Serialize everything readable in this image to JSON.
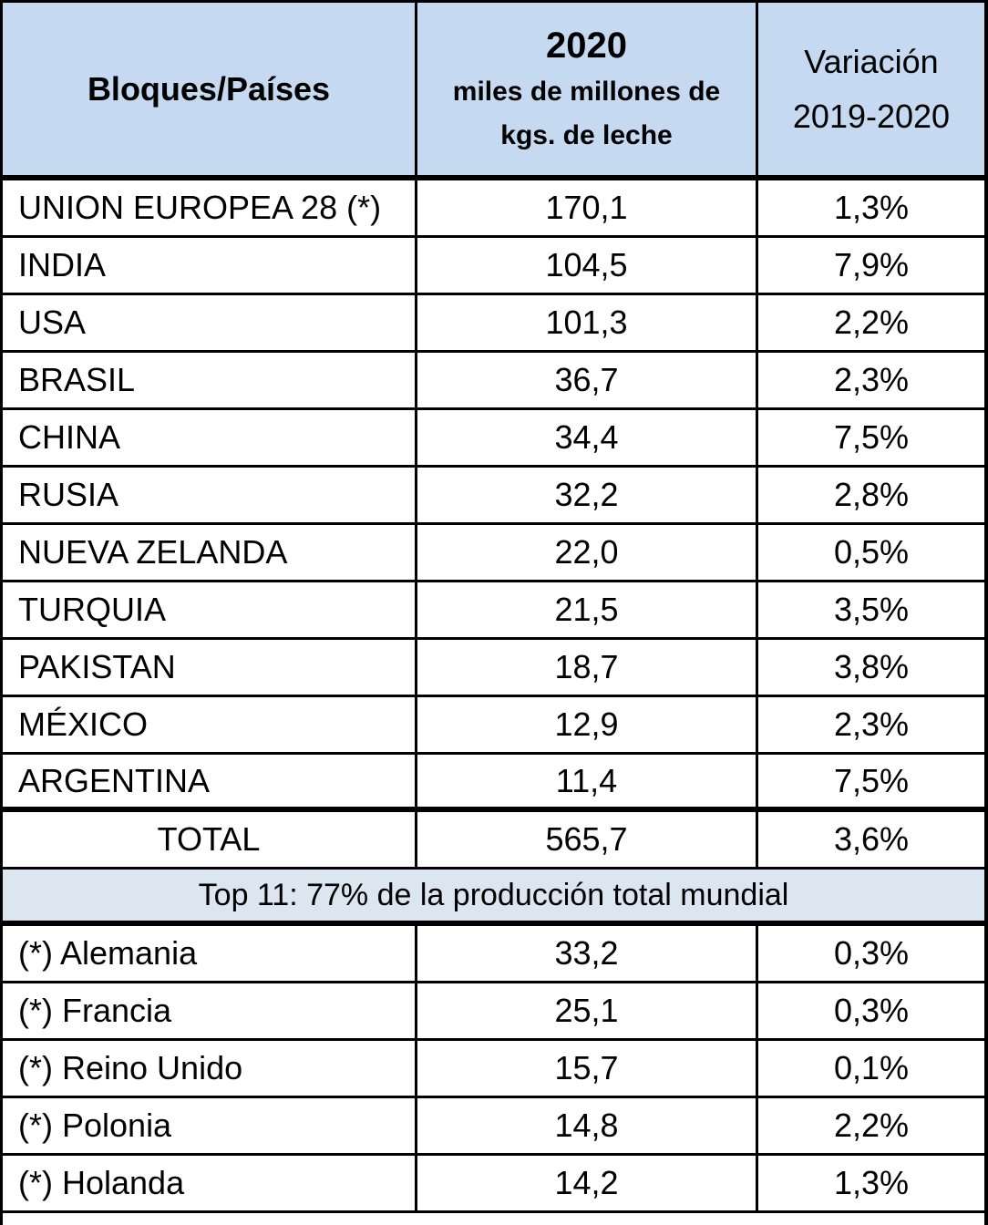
{
  "header": {
    "col1": "Bloques/Países",
    "col2_year": "2020",
    "col2_unit": [
      "miles de millones de",
      "kgs. de leche"
    ],
    "col3": [
      "Variación",
      "2019-2020"
    ]
  },
  "rows": [
    [
      "UNION EUROPEA 28 (*)",
      "170,1",
      "1,3%"
    ],
    [
      "INDIA",
      "104,5",
      "7,9%"
    ],
    [
      "USA",
      "101,3",
      "2,2%"
    ],
    [
      "BRASIL",
      "36,7",
      "2,3%"
    ],
    [
      "CHINA",
      "34,4",
      "7,5%"
    ],
    [
      "RUSIA",
      "32,2",
      "2,8%"
    ],
    [
      "NUEVA ZELANDA",
      "22,0",
      "0,5%"
    ],
    [
      "TURQUIA",
      "21,5",
      "3,5%"
    ],
    [
      "PAKISTAN",
      "18,7",
      "3,8%"
    ],
    [
      "MÉXICO",
      "12,9",
      "2,3%"
    ],
    [
      "ARGENTINA",
      "11,4",
      "7,5%"
    ]
  ],
  "total": [
    "TOTAL",
    "565,7",
    "3,6%"
  ],
  "note": "Top 11: 77% de la producción total mundial",
  "sub_rows": [
    [
      "(*) Alemania",
      "33,2",
      "0,3%"
    ],
    [
      "(*) Francia",
      "25,1",
      "0,3%"
    ],
    [
      "(*) Reino Unido",
      "15,7",
      "0,1%"
    ],
    [
      "(*) Polonia",
      "14,8",
      "2,2%"
    ],
    [
      "(*) Holanda",
      "14,2",
      "1,3%"
    ]
  ]
}
